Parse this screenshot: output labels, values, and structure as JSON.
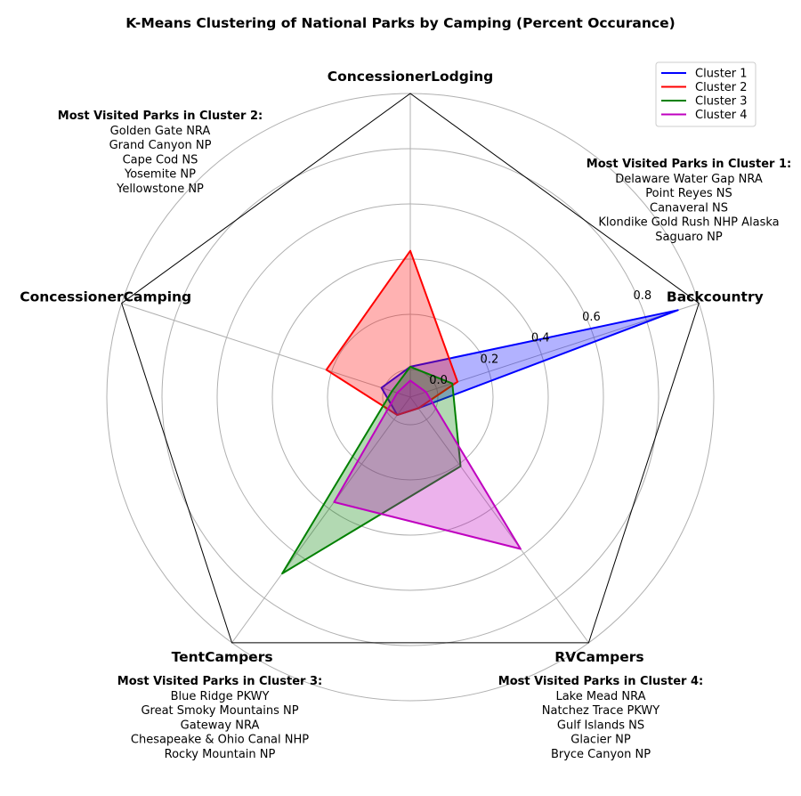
{
  "chart_data": {
    "type": "radar",
    "title": "K-Means Clustering of National Parks by Camping (Percent Occurance)",
    "axes": [
      "Backcountry",
      "ConcessionerLodging",
      "ConcessionerCamping",
      "TentCampers",
      "RVCampers"
    ],
    "rlim": [
      -0.1,
      1.0
    ],
    "rticks": [
      0.0,
      0.2,
      0.4,
      0.6,
      0.8
    ],
    "rtick_labels": [
      "0.0",
      "0.2",
      "0.4",
      "0.6",
      "0.8"
    ],
    "grid": true,
    "legend_position": "upper-right",
    "series": [
      {
        "name": "Cluster 1",
        "color": "#0000ff",
        "fill": "#0000ff",
        "values": [
          0.92,
          0.01,
          0.01,
          -0.02,
          -0.05
        ]
      },
      {
        "name": "Cluster 2",
        "color": "#ff0000",
        "fill": "#ff0000",
        "values": [
          0.08,
          0.43,
          0.22,
          -0.02,
          -0.05
        ]
      },
      {
        "name": "Cluster 3",
        "color": "#008000",
        "fill": "#008000",
        "values": [
          0.06,
          0.01,
          -0.03,
          0.69,
          0.21
        ]
      },
      {
        "name": "Cluster 4",
        "color": "#bf00bf",
        "fill": "#bf00bf",
        "values": [
          -0.04,
          -0.04,
          -0.05,
          0.37,
          0.58
        ]
      }
    ],
    "annotations": [
      {
        "title": "Most Visited Parks in Cluster 1:",
        "parks": [
          "Delaware Water Gap NRA",
          "Point Reyes NS",
          "Canaveral NS",
          "Klondike Gold Rush NHP Alaska",
          "Saguaro NP"
        ]
      },
      {
        "title": "Most Visited Parks in Cluster 2:",
        "parks": [
          "Golden Gate NRA",
          "Grand Canyon NP",
          "Cape Cod NS",
          "Yosemite NP",
          "Yellowstone NP"
        ]
      },
      {
        "title": "Most Visited Parks in Cluster 3:",
        "parks": [
          "Blue Ridge PKWY",
          "Great Smoky Mountains NP",
          "Gateway NRA",
          "Chesapeake & Ohio Canal NHP",
          "Rocky Mountain NP"
        ]
      },
      {
        "title": "Most Visited Parks in Cluster 4:",
        "parks": [
          "Lake Mead NRA",
          "Natchez Trace PKWY",
          "Gulf Islands NS",
          "Glacier NP",
          "Bryce Canyon NP"
        ]
      }
    ]
  }
}
